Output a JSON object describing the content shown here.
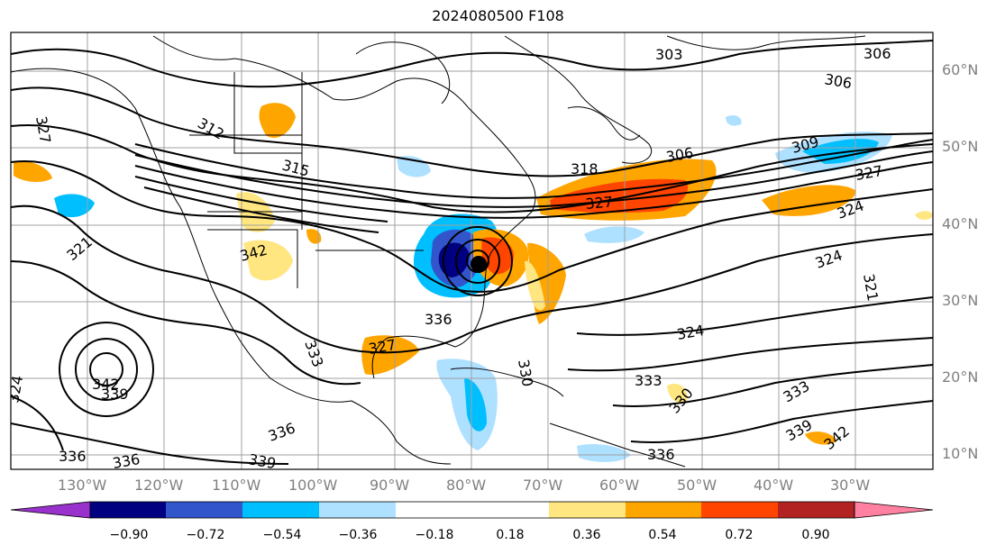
{
  "title": "2024080500 F108",
  "lat_labels": [
    "60°N",
    "50°N",
    "40°N",
    "30°N",
    "20°N",
    "10°N"
  ],
  "lon_labels": [
    "130°W",
    "120°W",
    "110°W",
    "100°W",
    "90°W",
    "80°W",
    "70°W",
    "60°W",
    "50°W",
    "40°W",
    "30°W"
  ],
  "colorbar": {
    "ticks": [
      "−0.90",
      "−0.72",
      "−0.54",
      "−0.36",
      "−0.18",
      "0.18",
      "0.36",
      "0.54",
      "0.72",
      "0.90"
    ],
    "colors": [
      "#9932cc",
      "#000080",
      "#3355cc",
      "#00bfff",
      "#aee0ff",
      "#ffffff",
      "#ffe680",
      "#ffa500",
      "#ff4500",
      "#b22222",
      "#ff80a0"
    ]
  },
  "contour_labels": [
    "303",
    "306",
    "306",
    "306",
    "309",
    "312",
    "315",
    "318",
    "321",
    "321",
    "324",
    "324",
    "324",
    "324",
    "327",
    "327",
    "327",
    "327",
    "330",
    "330",
    "333",
    "333",
    "333",
    "336",
    "336",
    "336",
    "336",
    "336",
    "339",
    "339",
    "339",
    "342",
    "342",
    "342"
  ]
}
